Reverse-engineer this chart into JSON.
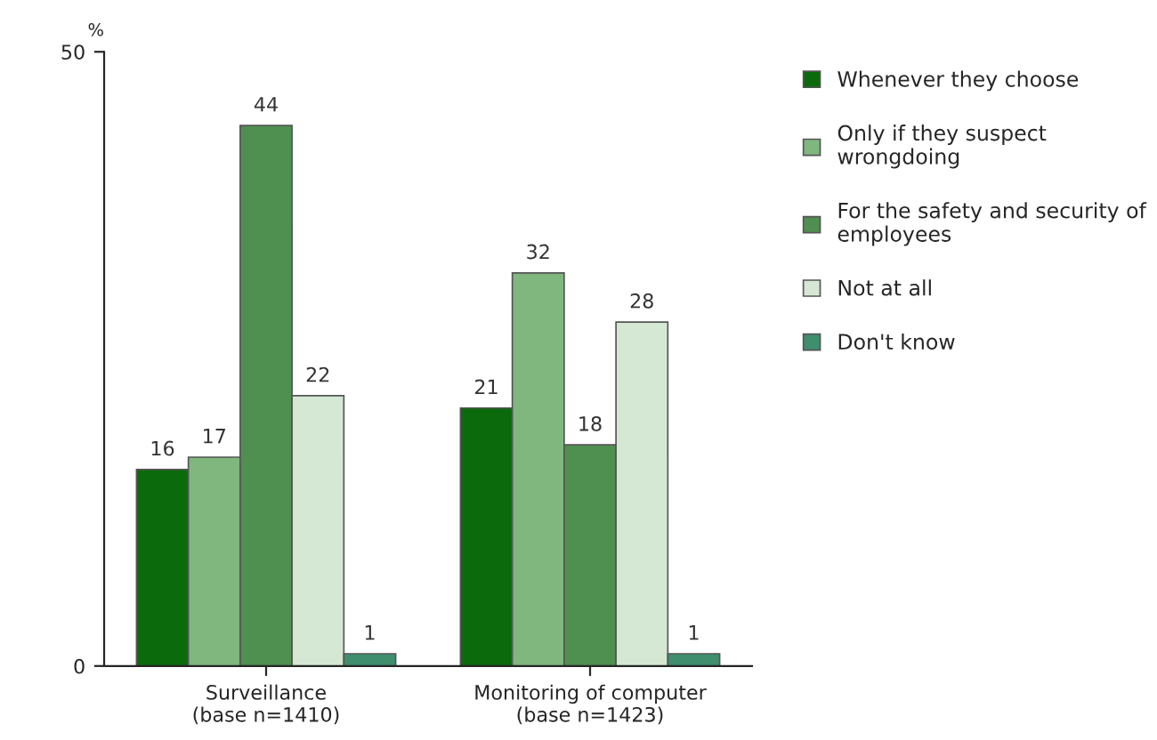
{
  "chart_data": {
    "type": "bar",
    "ylabel": "%",
    "categories": [
      "Surveillance\n(base n=1410)",
      "Monitoring of computer\n(base n=1423)"
    ],
    "series": [
      {
        "name": "Whenever they choose",
        "color": "#0b6a0b",
        "values": [
          16,
          21
        ]
      },
      {
        "name": "Only if they suspect\nwrongdoing",
        "color": "#7fb77f",
        "values": [
          17,
          32
        ]
      },
      {
        "name": "For the safety and security of\nemployees",
        "color": "#4f8f4f",
        "values": [
          44,
          18
        ]
      },
      {
        "name": "Not at all",
        "color": "#d4e8d4",
        "values": [
          22,
          28
        ]
      },
      {
        "name": "Don't know",
        "color": "#3f8f6f",
        "values": [
          1,
          1
        ]
      }
    ],
    "ylim": [
      0,
      50
    ],
    "yticks": [
      0,
      50
    ],
    "data_labels": true,
    "grid": false,
    "legend": "right"
  }
}
